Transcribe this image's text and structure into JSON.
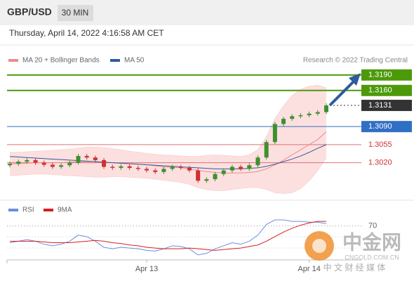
{
  "chart_data": {
    "type": "candlestick",
    "title": "GBP/USD",
    "timeframe": "30 MIN",
    "date": "Thursday, April 14, 2022 4:16:58 AM CET",
    "source": "Research © 2022 Trading Central",
    "up_color": "#3f8f2f",
    "down_color": "#d03030",
    "ylim": [
      1.295,
      1.324
    ],
    "open": [
      1.3015,
      1.3018,
      1.3022,
      1.3025,
      1.302,
      1.3016,
      1.3012,
      1.3015,
      1.302,
      1.3033,
      1.303,
      1.3025,
      1.3012,
      1.301,
      1.3013,
      1.301,
      1.3008,
      1.3005,
      1.3002,
      1.3008,
      1.3012,
      1.301,
      1.3005,
      1.2985,
      1.2988,
      1.2998,
      1.3005,
      1.3012,
      1.3008,
      1.3015,
      1.303,
      1.306,
      1.3095,
      1.3105,
      1.311,
      1.3112,
      1.3115,
      1.3118
    ],
    "high": [
      1.3022,
      1.3026,
      1.3029,
      1.3029,
      1.3024,
      1.302,
      1.3019,
      1.3024,
      1.3037,
      1.3037,
      1.3034,
      1.3029,
      1.3016,
      1.3017,
      1.3017,
      1.3014,
      1.3012,
      1.3009,
      1.3012,
      1.3016,
      1.3016,
      1.3014,
      1.3009,
      1.2992,
      1.3002,
      1.3009,
      1.3016,
      1.3016,
      1.3019,
      1.3034,
      1.3064,
      1.3099,
      1.3109,
      1.3114,
      1.3116,
      1.3119,
      1.3122,
      1.3135
    ],
    "low": [
      1.3011,
      1.3014,
      1.3018,
      1.3016,
      1.3012,
      1.3008,
      1.3008,
      1.3011,
      1.3016,
      1.3026,
      1.3021,
      1.3008,
      1.3006,
      1.3006,
      1.3006,
      1.3004,
      1.3001,
      1.2998,
      1.2998,
      1.3004,
      1.3006,
      1.3001,
      1.2981,
      1.2981,
      1.2984,
      1.2994,
      1.3001,
      1.3004,
      1.3004,
      1.3011,
      1.3026,
      1.3056,
      1.3091,
      1.3101,
      1.3106,
      1.3108,
      1.3111,
      1.3114
    ],
    "close": [
      1.3018,
      1.3022,
      1.3025,
      1.302,
      1.3016,
      1.3012,
      1.3015,
      1.302,
      1.3033,
      1.303,
      1.3025,
      1.3012,
      1.301,
      1.3013,
      1.301,
      1.3008,
      1.3005,
      1.3002,
      1.3008,
      1.3012,
      1.301,
      1.3005,
      1.2985,
      1.2988,
      1.2998,
      1.3005,
      1.3012,
      1.3008,
      1.3015,
      1.303,
      1.306,
      1.3095,
      1.3105,
      1.311,
      1.3112,
      1.3115,
      1.3118,
      1.3131
    ],
    "series": [
      {
        "name": "MA 20 + Bollinger Bands",
        "color": "#f08a8a",
        "values": [
          1.3018,
          1.3018,
          1.3019,
          1.302,
          1.302,
          1.302,
          1.302,
          1.3021,
          1.3022,
          1.3022,
          1.3022,
          1.3021,
          1.302,
          1.3019,
          1.3018,
          1.3017,
          1.3016,
          1.3014,
          1.3012,
          1.3011,
          1.301,
          1.3008,
          1.3005,
          1.3003,
          1.3001,
          1.3,
          1.3,
          1.3,
          1.3001,
          1.3003,
          1.3008,
          1.3016,
          1.3025,
          1.3035,
          1.3045,
          1.3055,
          1.3065,
          1.308
        ]
      },
      {
        "name": "MA 50",
        "color": "#2f5b9c",
        "values": [
          1.3032,
          1.3031,
          1.303,
          1.3029,
          1.3028,
          1.3027,
          1.3026,
          1.3025,
          1.3024,
          1.3023,
          1.3022,
          1.3021,
          1.302,
          1.3019,
          1.3018,
          1.3017,
          1.3016,
          1.3015,
          1.3014,
          1.3013,
          1.3012,
          1.3011,
          1.301,
          1.3009,
          1.3008,
          1.3008,
          1.3008,
          1.3008,
          1.3009,
          1.301,
          1.3013,
          1.3017,
          1.3022,
          1.3027,
          1.3033,
          1.304,
          1.3048,
          1.3055
        ]
      }
    ],
    "bands": {
      "color": "#fbd3d3",
      "upper": [
        1.304,
        1.304,
        1.3041,
        1.3042,
        1.3043,
        1.3044,
        1.3045,
        1.3046,
        1.3048,
        1.305,
        1.305,
        1.3049,
        1.3047,
        1.3045,
        1.3042,
        1.304,
        1.3038,
        1.3036,
        1.3035,
        1.3034,
        1.3033,
        1.3032,
        1.3032,
        1.3034,
        1.3035,
        1.3034,
        1.3033,
        1.3032,
        1.3035,
        1.3045,
        1.307,
        1.3105,
        1.313,
        1.315,
        1.3162,
        1.3168,
        1.317,
        1.3165
      ],
      "lower": [
        1.2995,
        1.2996,
        1.2997,
        1.2998,
        1.2998,
        1.2997,
        1.2996,
        1.2995,
        1.2994,
        1.2993,
        1.2992,
        1.2992,
        1.2993,
        1.2993,
        1.2992,
        1.2991,
        1.299,
        1.2988,
        1.2986,
        1.2984,
        1.2982,
        1.2978,
        1.2972,
        1.2968,
        1.2966,
        1.2966,
        1.2968,
        1.297,
        1.2972,
        1.2972,
        1.2968,
        1.2962,
        1.296,
        1.2962,
        1.297,
        1.2985,
        1.3005,
        1.303
      ]
    },
    "levels": [
      {
        "value": 1.319,
        "label": "1.3190",
        "color": "#4c9a0a",
        "line": "solid"
      },
      {
        "value": 1.316,
        "label": "1.3160",
        "color": "#4c9a0a",
        "line": "solid"
      },
      {
        "value": 1.3131,
        "label": "1.3131",
        "color": "#333333",
        "line": "dotted"
      },
      {
        "value": 1.309,
        "label": "1.3090",
        "color": "#2f6fc4",
        "line": "solid"
      },
      {
        "value": 1.3055,
        "label": "1.3055",
        "color": "#e07070",
        "line": "solid"
      },
      {
        "value": 1.302,
        "label": "1.3020",
        "color": "#e07070",
        "line": "solid"
      }
    ],
    "xticks": [
      {
        "value": 16,
        "label": "Apr 13"
      },
      {
        "value": 35,
        "label": "Apr 14"
      }
    ],
    "rsi": {
      "ylim": [
        30,
        90
      ],
      "yticks": [
        70
      ],
      "series": [
        {
          "name": "RSI",
          "color": "#6a8ee0",
          "values": [
            48,
            50,
            52,
            50,
            46,
            44,
            46,
            50,
            58,
            56,
            50,
            42,
            40,
            42,
            41,
            40,
            38,
            37,
            40,
            44,
            43,
            40,
            32,
            34,
            40,
            44,
            48,
            46,
            50,
            58,
            72,
            78,
            78,
            76,
            76,
            75,
            75,
            73
          ]
        },
        {
          "name": "9MA",
          "color": "#d62020",
          "values": [
            50,
            50,
            50,
            50,
            49,
            48,
            48,
            48,
            49,
            50,
            51,
            50,
            48,
            47,
            45,
            44,
            42,
            41,
            40,
            40,
            40,
            41,
            40,
            39,
            38,
            39,
            40,
            41,
            43,
            45,
            50,
            56,
            62,
            67,
            71,
            74,
            76,
            76
          ]
        }
      ]
    }
  },
  "watermark": {
    "logo": "中金网",
    "site": "CNGOLD.COM.CN",
    "tagline": "中 文 财 经 媒 体"
  }
}
